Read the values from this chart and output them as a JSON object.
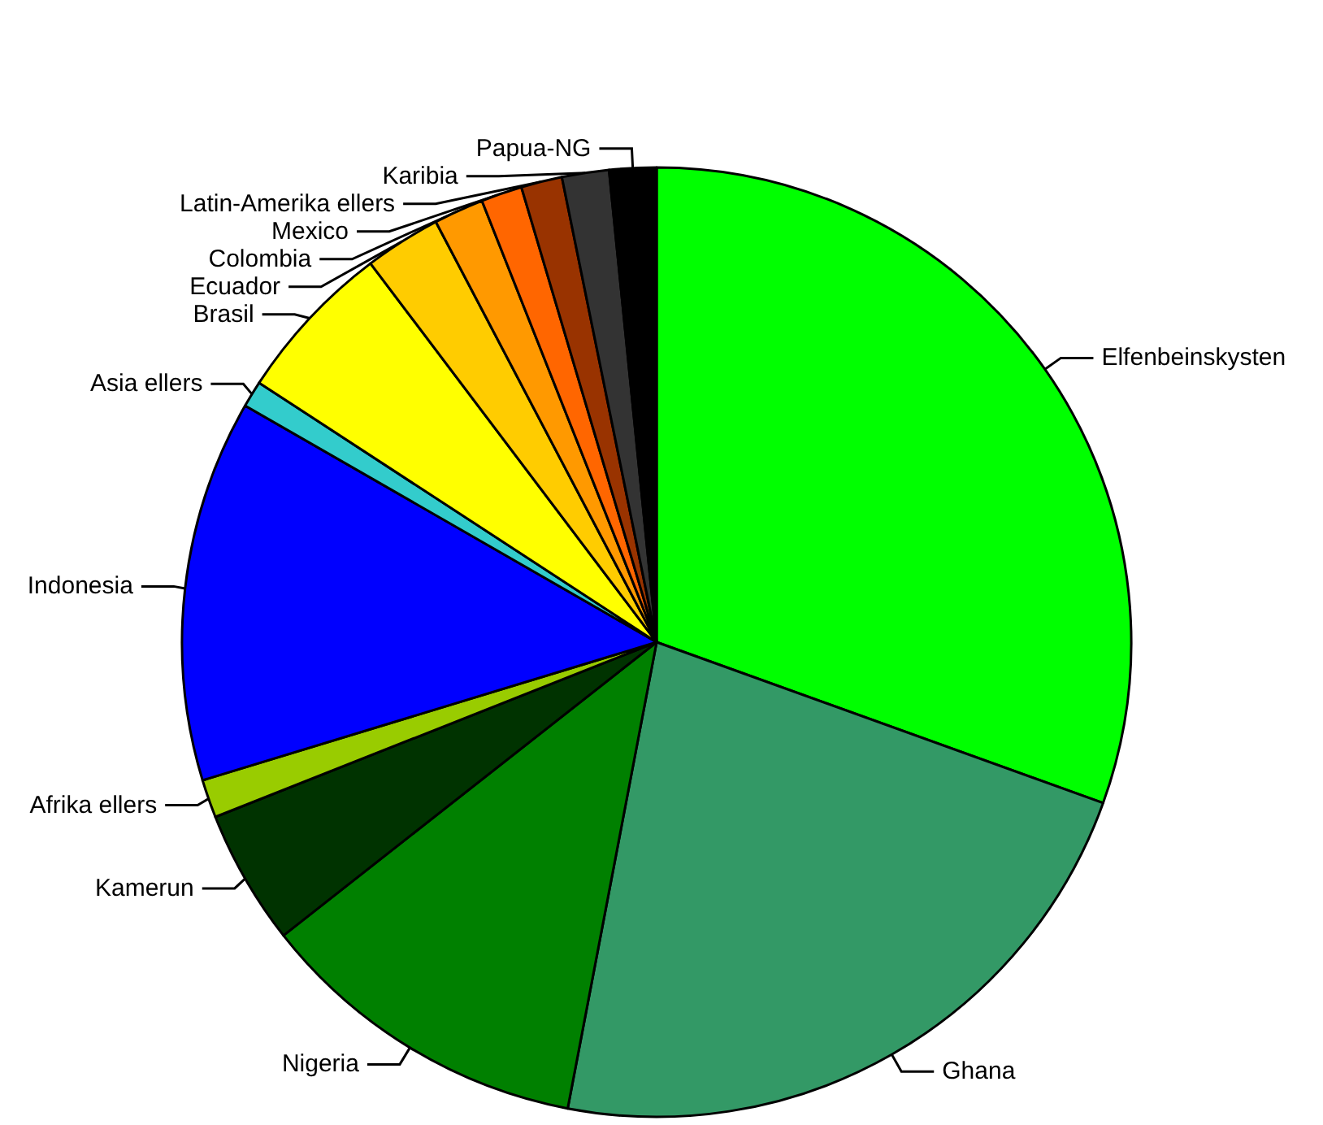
{
  "chart_data": {
    "type": "pie",
    "categories": [
      "Elfenbeinskysten",
      "Ghana",
      "Nigeria",
      "Kamerun",
      "Afrika ellers",
      "Indonesia",
      "Asia ellers",
      "Brasil",
      "Ecuador",
      "Colombia",
      "Mexico",
      "Latin-Amerika ellers",
      "Karibia",
      "Papua-NG"
    ],
    "values": [
      30.5,
      22.5,
      11.4,
      4.6,
      1.3,
      13.0,
      0.9,
      5.5,
      2.6,
      1.7,
      1.4,
      1.4,
      1.6,
      1.6
    ],
    "colors": [
      "#00ff00",
      "#339966",
      "#008000",
      "#003300",
      "#99cc00",
      "#0000ff",
      "#33cccc",
      "#ffff00",
      "#ffcc00",
      "#ff9900",
      "#ff6600",
      "#993300",
      "#333333",
      "#000000"
    ],
    "legend": false
  }
}
